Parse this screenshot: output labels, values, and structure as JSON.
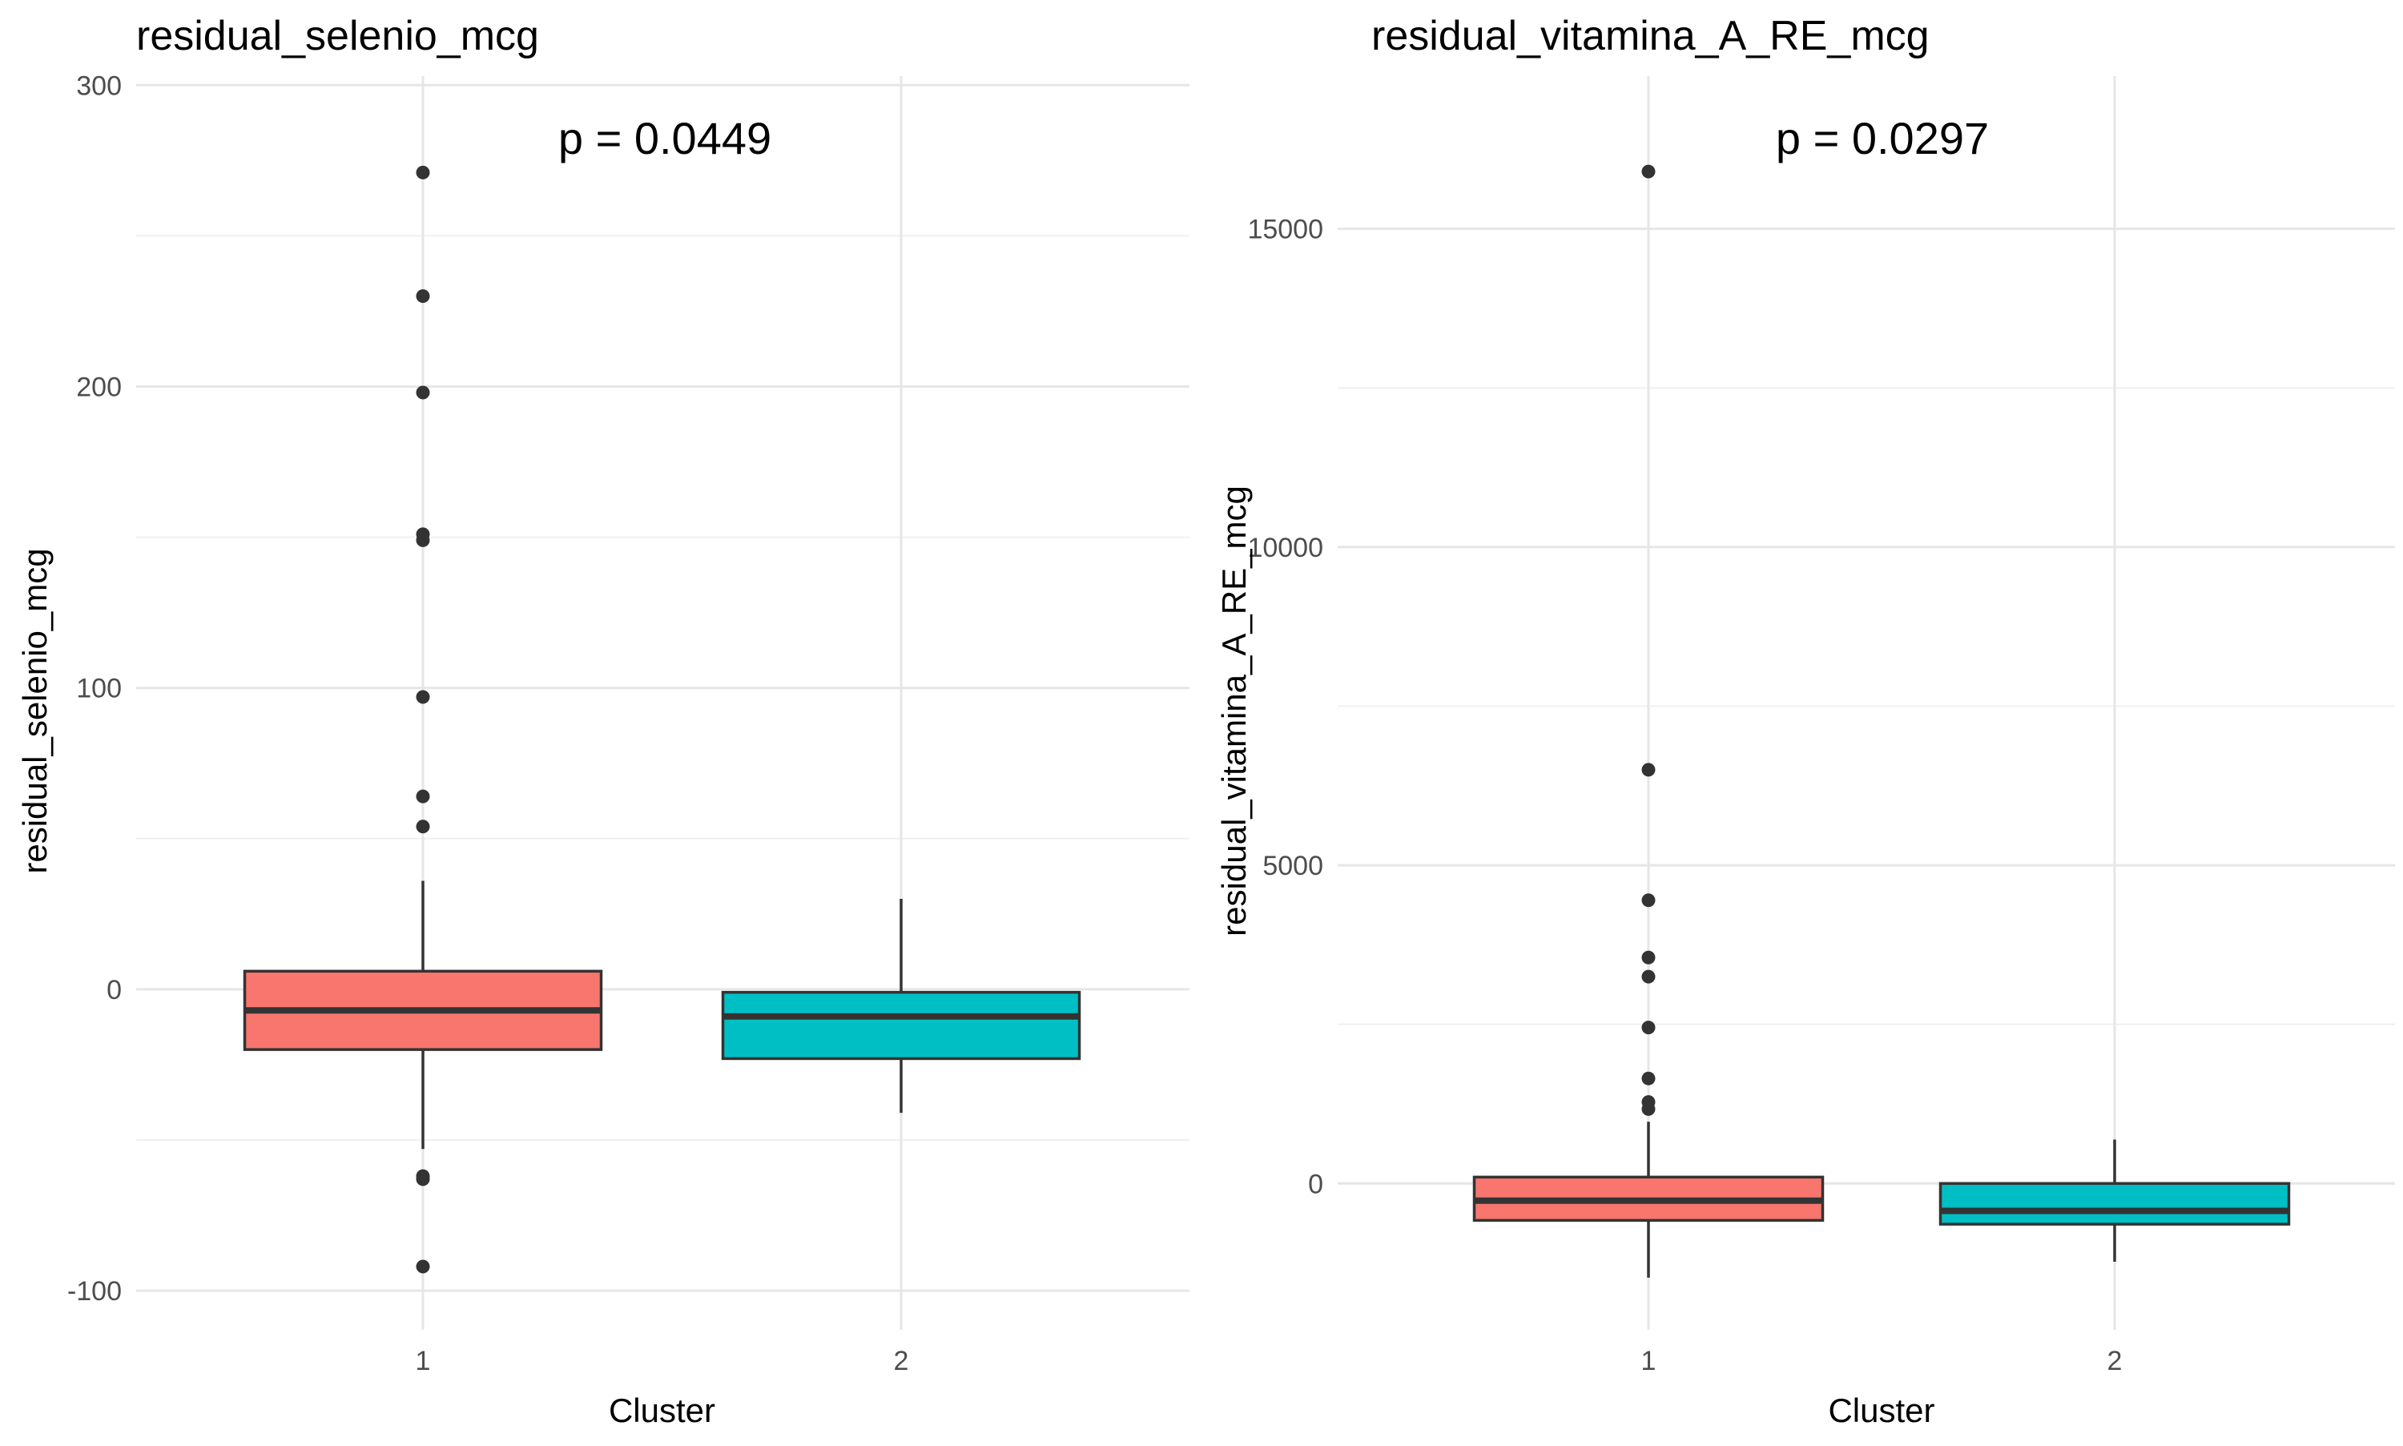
{
  "chart_data": [
    {
      "type": "box",
      "title": "residual_selenio_mcg",
      "xlabel": "Cluster",
      "ylabel": "residual_selenio_mcg",
      "annotation": "p = 0.0449",
      "categories": [
        "1",
        "2"
      ],
      "ylim": [
        -113,
        303
      ],
      "yticks": [
        -100,
        0,
        100,
        200,
        300
      ],
      "yticklabels": [
        "-100",
        "0",
        "100",
        "200",
        "300"
      ],
      "grid": true,
      "boxes": [
        {
          "category": "1",
          "q1": -20,
          "median": -7,
          "q3": 6,
          "whisker_low": -53,
          "whisker_high": 36,
          "outliers": [
            271,
            230,
            198,
            151,
            149,
            97,
            64,
            54,
            -62,
            -63,
            -92
          ],
          "color": "#F8766D"
        },
        {
          "category": "2",
          "q1": -23,
          "median": -9,
          "q3": -1,
          "whisker_low": -41,
          "whisker_high": 30,
          "outliers": [],
          "color": "#00BFC4"
        }
      ]
    },
    {
      "type": "box",
      "title": "residual_vitamina_A_RE_mcg",
      "xlabel": "Cluster",
      "ylabel": "residual_vitamina_A_RE_mcg",
      "annotation": "p = 0.0297",
      "categories": [
        "1",
        "2"
      ],
      "ylim": [
        -2300,
        17400
      ],
      "yticks": [
        0,
        5000,
        10000,
        15000
      ],
      "yticklabels": [
        "0",
        "5000",
        "10000",
        "15000"
      ],
      "grid": true,
      "boxes": [
        {
          "category": "1",
          "q1": -580,
          "median": -270,
          "q3": 100,
          "whisker_low": -1480,
          "whisker_high": 970,
          "outliers": [
            15900,
            6500,
            4450,
            3550,
            3250,
            2450,
            1650,
            1280,
            1170
          ],
          "color": "#F8766D"
        },
        {
          "category": "2",
          "q1": -640,
          "median": -430,
          "q3": 0,
          "whisker_low": -1230,
          "whisker_high": 690,
          "outliers": [],
          "color": "#00BFC4"
        }
      ]
    }
  ]
}
